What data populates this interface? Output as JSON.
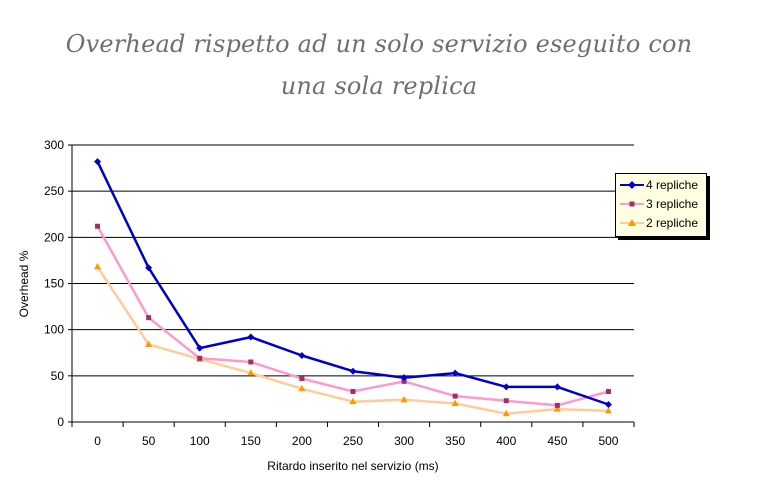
{
  "chart_data": {
    "type": "line",
    "title_line1": "Overhead rispetto ad un solo servizio eseguito con",
    "title_line2": "una sola replica",
    "xlabel": "Ritardo inserito nel servizio (ms)",
    "ylabel": "Overhead %",
    "ylim": [
      0,
      300
    ],
    "yticks": [
      0,
      50,
      100,
      150,
      200,
      250,
      300
    ],
    "categories": [
      "0",
      "50",
      "100",
      "150",
      "200",
      "250",
      "300",
      "350",
      "400",
      "450",
      "500"
    ],
    "grid": "horizontal",
    "legend_position": "right",
    "series": [
      {
        "name": "4 repliche",
        "color": "#0000cc",
        "marker": "diamond",
        "values": [
          282,
          167,
          80,
          92,
          72,
          55,
          48,
          53,
          38,
          38,
          19
        ]
      },
      {
        "name": "3 repliche",
        "color": "#ff99cc",
        "marker_color": "#993366",
        "marker": "square",
        "values": [
          212,
          113,
          69,
          65,
          47,
          33,
          44,
          28,
          23,
          18,
          33
        ]
      },
      {
        "name": "2 repliche",
        "color": "#ffcc99",
        "marker_color": "#ff9900",
        "marker": "triangle",
        "values": [
          168,
          84,
          68,
          53,
          36,
          22,
          24,
          20,
          9,
          14,
          12
        ]
      }
    ]
  }
}
